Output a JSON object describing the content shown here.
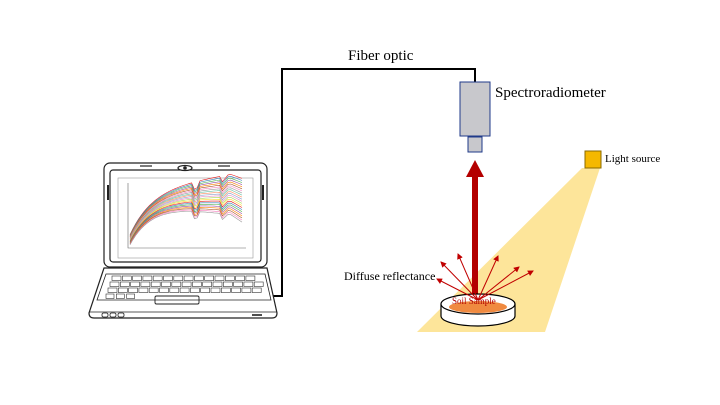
{
  "labels": {
    "fiber_optic": "Fiber optic",
    "spectroradiometer": "Spectroradiometer",
    "light_source": "Light source",
    "diffuse_reflectance": "Diffuse reflectance",
    "soil_sample": "Soil Sample"
  },
  "colors": {
    "light_beam": "#fde59a",
    "light_source": "#f5b800",
    "sensor_body": "#c8c8cc",
    "sensor_border": "#1f3a8a",
    "vertical_arrow": "#b40000",
    "reflect_arrows": "#c00000",
    "soil": "#f08a40"
  },
  "icons": [
    "laptop-icon",
    "spectroradiometer-icon",
    "light-source-icon",
    "soil-dish-icon"
  ]
}
